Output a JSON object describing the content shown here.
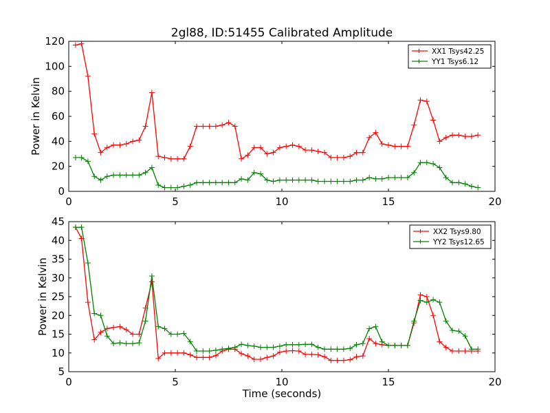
{
  "title": "2gl88, ID:51455 Calibrated Amplitude",
  "chart_data": [
    {
      "type": "line",
      "title": "2gl88, ID:51455 Calibrated Amplitude",
      "xlabel": "",
      "ylabel": "Power in Kelvin",
      "xlim": [
        0,
        20
      ],
      "ylim": [
        0,
        120
      ],
      "xticks": [
        0,
        5,
        10,
        15,
        20
      ],
      "yticks": [
        0,
        20,
        40,
        60,
        80,
        100,
        120
      ],
      "grid": false,
      "legend_position": "top-right",
      "x": [
        0.32,
        0.6,
        0.9,
        1.2,
        1.5,
        1.8,
        2.1,
        2.4,
        2.7,
        3.0,
        3.3,
        3.6,
        3.9,
        4.2,
        4.5,
        4.8,
        5.1,
        5.4,
        5.7,
        6.0,
        6.3,
        6.6,
        6.9,
        7.2,
        7.5,
        7.8,
        8.1,
        8.4,
        8.7,
        9.0,
        9.3,
        9.6,
        9.9,
        10.2,
        10.5,
        10.8,
        11.1,
        11.4,
        11.7,
        12.0,
        12.3,
        12.6,
        12.9,
        13.2,
        13.5,
        13.8,
        14.1,
        14.4,
        14.7,
        15.0,
        15.3,
        15.6,
        15.9,
        16.2,
        16.5,
        16.8,
        17.1,
        17.4,
        17.7,
        18.0,
        18.3,
        18.6,
        18.9,
        19.2
      ],
      "series": [
        {
          "name": "XX1 Tsys42.25",
          "color": "#ff0000",
          "values": [
            117,
            118,
            92,
            46,
            31,
            35,
            37,
            37,
            38,
            40,
            41,
            52,
            79,
            28,
            27,
            26,
            26,
            26,
            36,
            52,
            52,
            52,
            52,
            53,
            55,
            52,
            26,
            29,
            35,
            35,
            30,
            31,
            35,
            36,
            37,
            36,
            33,
            33,
            32,
            31,
            27,
            27,
            27,
            28,
            31,
            31,
            43,
            47,
            38,
            37,
            36,
            36,
            36,
            53,
            73,
            72,
            57,
            40,
            43,
            45,
            45,
            44,
            44,
            45
          ]
        },
        {
          "name": "YY1 Tsys6.12",
          "color": "#008000",
          "values": [
            27,
            27,
            24,
            12,
            9,
            12,
            13,
            13,
            13,
            13,
            13,
            15,
            19,
            5,
            3,
            3,
            3,
            4,
            5,
            7,
            7,
            7,
            7,
            7,
            7,
            7,
            10,
            9,
            15,
            14,
            9,
            8,
            9,
            9,
            9,
            9,
            9,
            9,
            8,
            8,
            8,
            8,
            8,
            8,
            9,
            9,
            11,
            10,
            10,
            11,
            11,
            11,
            11,
            15,
            23,
            23,
            22,
            19,
            11,
            7,
            7,
            6,
            4,
            3
          ]
        }
      ]
    },
    {
      "type": "line",
      "title": "",
      "xlabel": "Time (seconds)",
      "ylabel": "Power in Kelvin",
      "xlim": [
        0,
        20
      ],
      "ylim": [
        5,
        45
      ],
      "xticks": [
        0,
        5,
        10,
        15,
        20
      ],
      "yticks": [
        5,
        10,
        15,
        20,
        25,
        30,
        35,
        40,
        45
      ],
      "grid": false,
      "legend_position": "top-right",
      "x": [
        0.32,
        0.6,
        0.9,
        1.2,
        1.5,
        1.8,
        2.1,
        2.4,
        2.7,
        3.0,
        3.3,
        3.6,
        3.9,
        4.2,
        4.5,
        4.8,
        5.1,
        5.4,
        5.7,
        6.0,
        6.3,
        6.6,
        6.9,
        7.2,
        7.5,
        7.8,
        8.1,
        8.4,
        8.7,
        9.0,
        9.3,
        9.6,
        9.9,
        10.2,
        10.5,
        10.8,
        11.1,
        11.4,
        11.7,
        12.0,
        12.3,
        12.6,
        12.9,
        13.2,
        13.5,
        13.8,
        14.1,
        14.4,
        14.7,
        15.0,
        15.3,
        15.6,
        15.9,
        16.2,
        16.5,
        16.8,
        17.1,
        17.4,
        17.7,
        18.0,
        18.3,
        18.6,
        18.9,
        19.2
      ],
      "series": [
        {
          "name": "XX2 Tsys9.80",
          "color": "#ff0000",
          "values": [
            43.5,
            40.5,
            23.5,
            13.5,
            15.5,
            16.5,
            16.8,
            17,
            16.2,
            15,
            15,
            22,
            29,
            8.5,
            10,
            10,
            10,
            10,
            9.5,
            8.8,
            8.8,
            8.8,
            9.3,
            10.5,
            11,
            11,
            9.8,
            9.2,
            8.3,
            8.3,
            8.8,
            9.2,
            10.2,
            10.5,
            10.6,
            10.5,
            9.6,
            9.6,
            9.5,
            9,
            8,
            8,
            8,
            8.2,
            9,
            9.2,
            13.8,
            12.5,
            12.2,
            12,
            12,
            12,
            12,
            18,
            25.5,
            25,
            20,
            13,
            11.5,
            10.5,
            10.5,
            10.5,
            10.5,
            10.5
          ]
        },
        {
          "name": "YY2 Tsys12.65",
          "color": "#008000",
          "values": [
            43.5,
            43.5,
            34,
            20.5,
            20,
            14.5,
            12.5,
            12.7,
            12.5,
            12.5,
            12.7,
            18.5,
            30.5,
            17,
            16.5,
            15,
            15,
            15.2,
            13,
            10.5,
            10.5,
            10.5,
            10.7,
            11,
            11.2,
            11.5,
            12.3,
            12,
            11.8,
            11.5,
            11.5,
            11.5,
            11.8,
            12.2,
            12.2,
            12.2,
            12.3,
            12.3,
            11.5,
            11,
            11,
            11,
            11,
            11.2,
            12.2,
            12.5,
            16.5,
            17,
            13,
            12,
            12,
            12,
            12,
            18.5,
            24,
            23.5,
            24.2,
            23.5,
            18.5,
            16,
            15.8,
            14.5,
            11,
            11
          ]
        }
      ]
    }
  ]
}
